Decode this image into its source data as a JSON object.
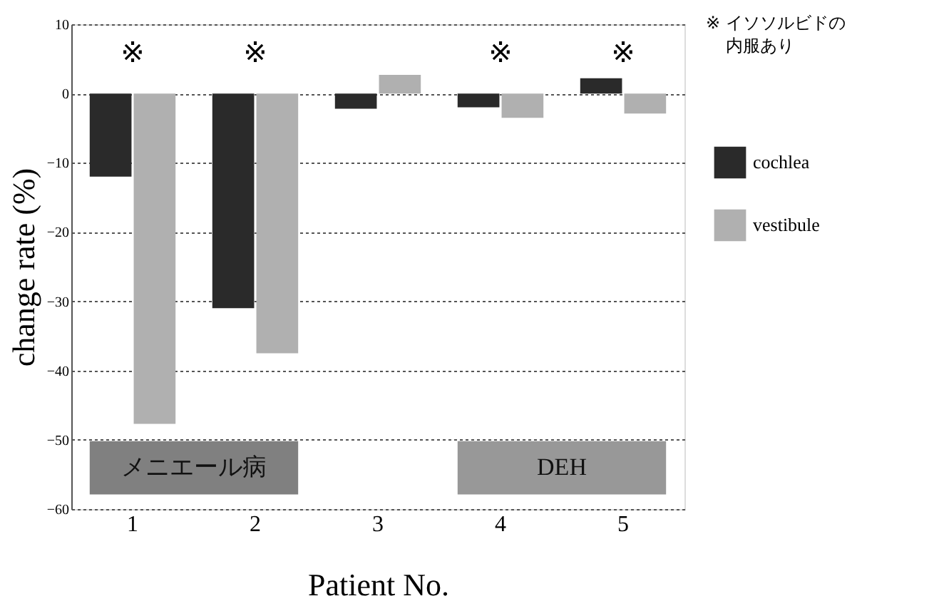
{
  "chart_data": {
    "type": "bar",
    "xlabel": "Patient No.",
    "ylabel": "change rate (%)",
    "categories": [
      "1",
      "2",
      "3",
      "4",
      "5"
    ],
    "series": [
      {
        "name": "cochlea",
        "color": "#2a2a2a",
        "values": [
          -12,
          -31,
          -2.2,
          -2,
          2.2
        ],
        "value_labels": [
          "※",
          "※",
          null,
          "※",
          "※"
        ]
      },
      {
        "name": "vestibule",
        "color": "#b0b0b0",
        "values": [
          -47.7,
          -37.5,
          2.7,
          -3.5,
          -2.9
        ]
      }
    ],
    "ylim": [
      -60,
      10
    ],
    "yticks": [
      -60,
      -50,
      -40,
      -30,
      -20,
      -10,
      0,
      10
    ],
    "grid": "y",
    "legend": "right",
    "bands": [
      {
        "axis": "x",
        "from": "1",
        "to": "2",
        "label": "メニエール病",
        "color": "#808080"
      },
      {
        "axis": "x",
        "from": "4",
        "to": "5",
        "label": "DEH",
        "color": "#989898"
      }
    ],
    "annotations": [
      "※ イソソルビドの",
      "内服あり"
    ]
  }
}
